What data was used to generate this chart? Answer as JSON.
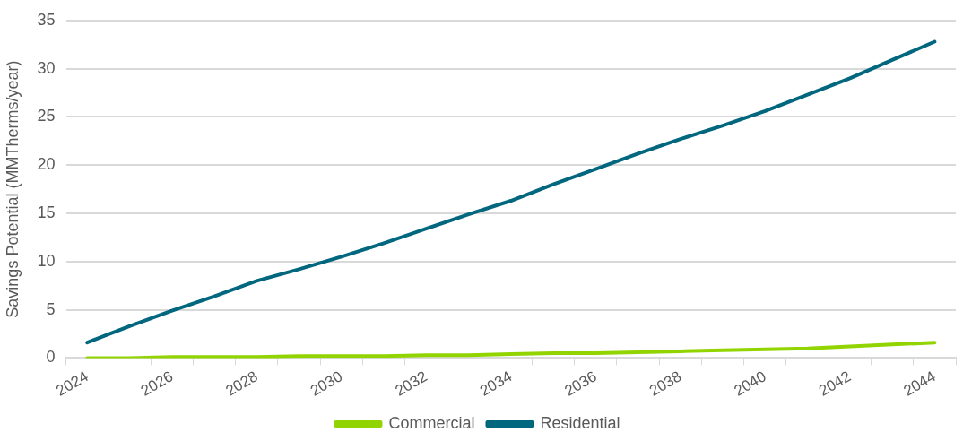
{
  "chart_data": {
    "type": "line",
    "ylabel": "Savings Potential (MMTherms/year)",
    "categories": [
      "2024",
      null,
      "2026",
      null,
      "2028",
      null,
      "2030",
      null,
      "2032",
      null,
      "2034",
      null,
      "2036",
      null,
      "2038",
      null,
      "2040",
      null,
      "2042",
      null,
      "2044"
    ],
    "series": [
      {
        "name": "Commercial",
        "color": "#92d400",
        "values": [
          0.0,
          0.0,
          0.1,
          0.1,
          0.1,
          0.2,
          0.2,
          0.2,
          0.3,
          0.3,
          0.4,
          0.5,
          0.5,
          0.6,
          0.7,
          0.8,
          0.9,
          1.0,
          1.2,
          1.4,
          1.6
        ]
      },
      {
        "name": "Residential",
        "color": "#00677f",
        "values": [
          1.6,
          3.3,
          4.9,
          6.4,
          8.0,
          9.2,
          10.5,
          11.9,
          13.4,
          14.9,
          16.3,
          18.0,
          19.6,
          21.2,
          22.7,
          24.1,
          25.6,
          27.3,
          29.0,
          30.9,
          32.8
        ]
      }
    ],
    "ylim": [
      0,
      35
    ],
    "yticks": [
      0,
      5,
      10,
      15,
      20,
      25,
      30,
      35
    ],
    "grid": "y",
    "legend": "bottom",
    "marker": "none",
    "line_style": "solid"
  }
}
